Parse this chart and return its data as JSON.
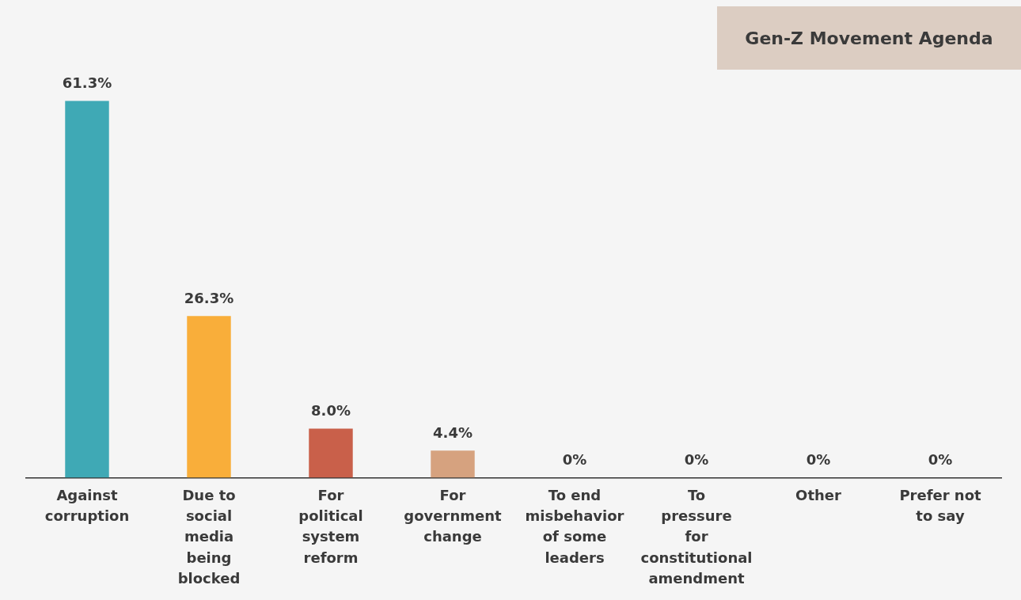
{
  "chart_data": {
    "type": "bar",
    "title": "Gen-Z Movement Agenda",
    "categories": [
      "Against corruption",
      "Due to social media being blocked",
      "For political system reform",
      "For government change",
      "To end misbehavior of some leaders",
      "To pressure for constitutional amendment",
      "Other",
      "Prefer not to say"
    ],
    "values": [
      61.3,
      26.3,
      8.0,
      4.4,
      0,
      0,
      0,
      0
    ],
    "value_labels": [
      "61.3%",
      "26.3%",
      "8.0%",
      "4.4%",
      "0%",
      "0%",
      "0%",
      "0%"
    ],
    "colors": [
      "#3fa9b5",
      "#f9ae3a",
      "#c9604a",
      "#d6a27f",
      "#999999",
      "#999999",
      "#999999",
      "#999999"
    ],
    "grid": false,
    "legend": false
  }
}
